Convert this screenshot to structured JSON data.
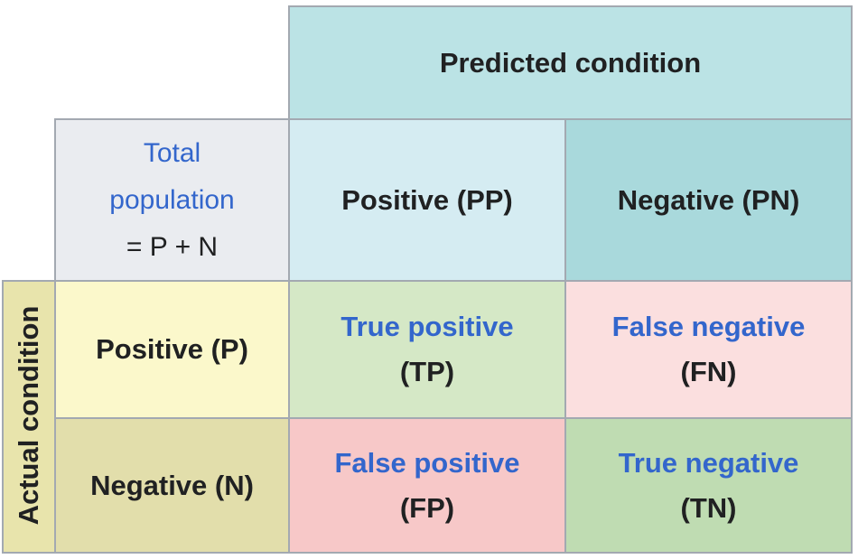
{
  "header": {
    "predicted_condition": "Predicted condition",
    "actual_condition": "Actual condition"
  },
  "total_population": {
    "line1": "Total",
    "line2": "population",
    "line3": "= P + N"
  },
  "predicted": {
    "positive": "Positive (PP)",
    "negative": "Negative (PN)"
  },
  "actual": {
    "positive": "Positive (P)",
    "negative": "Negative (N)"
  },
  "outcomes": {
    "tp_label": "True positive",
    "tp_abbr": "(TP)",
    "fn_label": "False negative",
    "fn_abbr": "(FN)",
    "fp_label": "False positive",
    "fp_abbr": "(FP)",
    "tn_label": "True negative",
    "tn_abbr": "(TN)"
  },
  "colors": {
    "predicted_header": "#bbe3e5",
    "predicted_positive": "#d5ecf2",
    "predicted_negative": "#a9d9dc",
    "total_population": "#eaecf0",
    "actual_header": "#e8e4ac",
    "actual_positive": "#fbf8cb",
    "actual_negative": "#e2deab",
    "true_cell": "#d5e8c6",
    "false_negative": "#fbdfdf",
    "false_positive": "#f7c8c8",
    "true_negative": "#bfdcb2",
    "link_text": "#3366cc",
    "border": "#a3a9b1"
  }
}
